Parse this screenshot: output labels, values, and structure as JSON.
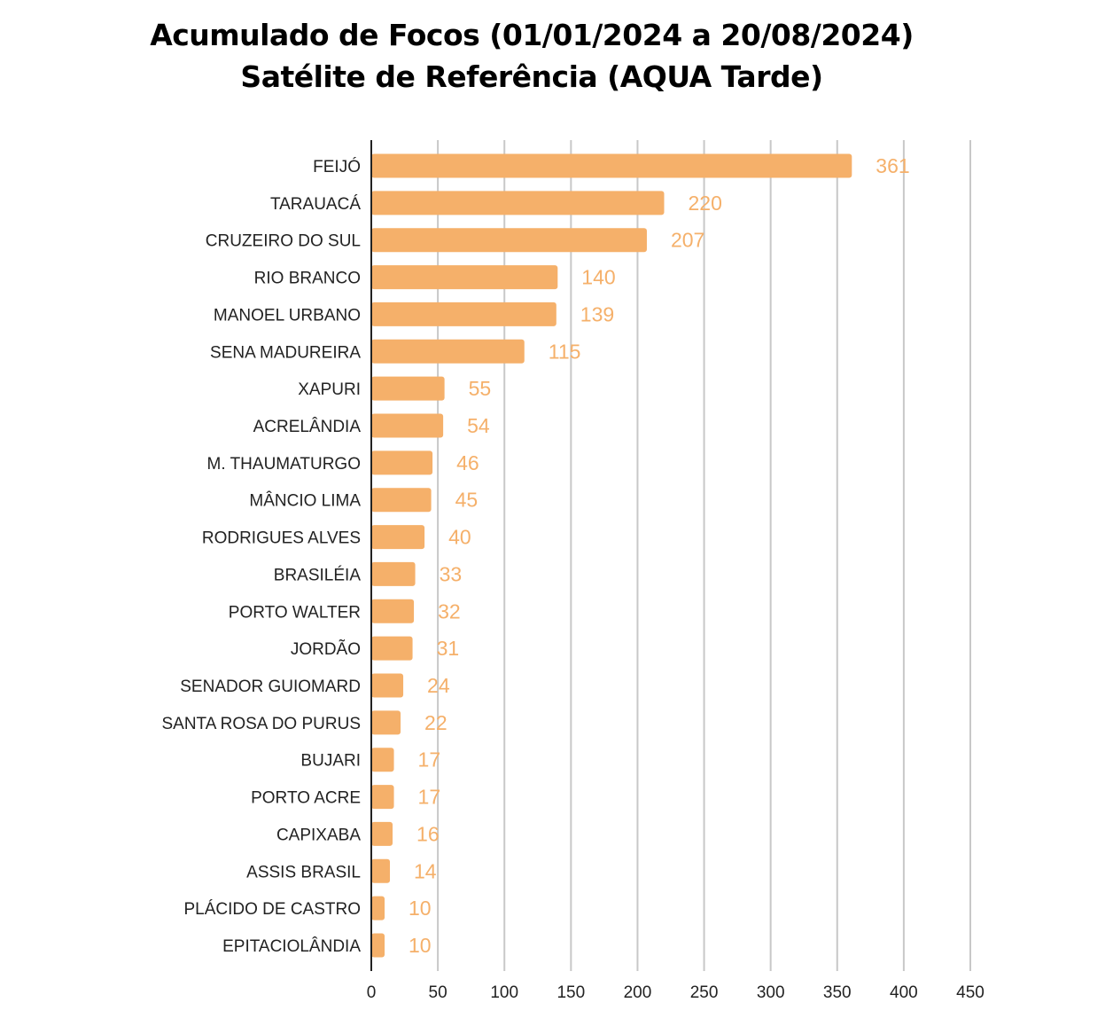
{
  "chart_data": {
    "type": "bar",
    "orientation": "horizontal",
    "title": "Acumulado de Focos (01/01/2024 a 20/08/2024)",
    "subtitle": "Satélite de Referência (AQUA Tarde)",
    "categories": [
      "FEIJÓ",
      "TARAUACÁ",
      "CRUZEIRO DO SUL",
      "RIO BRANCO",
      "MANOEL URBANO",
      "SENA MADUREIRA",
      "XAPURI",
      "ACRELÂNDIA",
      "M. THAUMATURGO",
      "MÂNCIO LIMA",
      "RODRIGUES ALVES",
      "BRASILÉIA",
      "PORTO WALTER",
      "JORDÃO",
      "SENADOR GUIOMARD",
      "SANTA ROSA DO PURUS",
      "BUJARI",
      "PORTO ACRE",
      "CAPIXABA",
      "ASSIS BRASIL",
      "PLÁCIDO DE CASTRO",
      "EPITACIOLÂNDIA"
    ],
    "values": [
      361,
      220,
      207,
      140,
      139,
      115,
      55,
      54,
      46,
      45,
      40,
      33,
      32,
      31,
      24,
      22,
      17,
      17,
      16,
      14,
      10,
      10
    ],
    "xlim": [
      0,
      450
    ],
    "xticks": [
      0,
      50,
      100,
      150,
      200,
      250,
      300,
      350,
      400,
      450
    ],
    "xlabel": "",
    "ylabel": "",
    "grid": true,
    "bar_color": "#F5B06A",
    "label_color": "#F5B06A"
  }
}
